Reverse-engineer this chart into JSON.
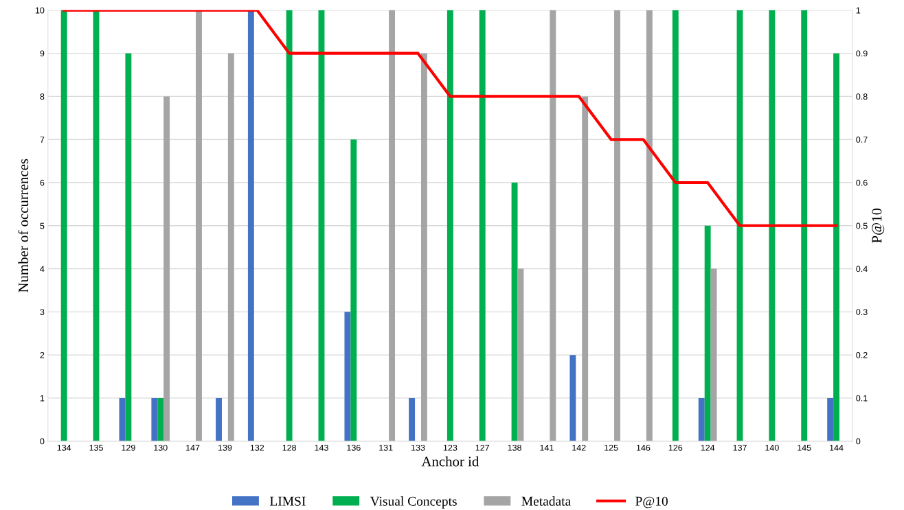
{
  "chart_data": {
    "type": "bar",
    "xlabel": "Anchor id",
    "ylabel": "Number of occurrences",
    "y2label": "P@10",
    "categories": [
      "134",
      "135",
      "129",
      "130",
      "147",
      "139",
      "132",
      "128",
      "143",
      "136",
      "131",
      "133",
      "123",
      "127",
      "138",
      "141",
      "142",
      "125",
      "146",
      "126",
      "124",
      "137",
      "140",
      "145",
      "144"
    ],
    "series": [
      {
        "name": "LIMSI",
        "color": "#4472c4",
        "values": [
          0,
          0,
          1,
          1,
          0,
          1,
          10,
          0,
          0,
          3,
          0,
          1,
          0,
          0,
          0,
          0,
          2,
          0,
          0,
          0,
          1,
          0,
          0,
          0,
          1
        ]
      },
      {
        "name": "Visual Concepts",
        "color": "#00b050",
        "values": [
          10,
          10,
          9,
          1,
          0,
          0,
          0,
          10,
          10,
          7,
          0,
          0,
          10,
          10,
          6,
          0,
          0,
          0,
          0,
          10,
          5,
          10,
          10,
          10,
          9
        ]
      },
      {
        "name": "Metadata",
        "color": "#a5a5a5",
        "values": [
          0,
          0,
          0,
          8,
          10,
          9,
          0,
          0,
          0,
          0,
          10,
          9,
          0,
          0,
          4,
          10,
          8,
          10,
          10,
          0,
          4,
          0,
          0,
          0,
          0
        ]
      },
      {
        "name": "P@10",
        "type": "line",
        "axis": "y2",
        "color": "#ff0000",
        "values": [
          1,
          1,
          1,
          1,
          1,
          1,
          1,
          0.9,
          0.9,
          0.9,
          0.9,
          0.9,
          0.8,
          0.8,
          0.8,
          0.8,
          0.8,
          0.7,
          0.7,
          0.6,
          0.6,
          0.5,
          0.5,
          0.5,
          0.5
        ]
      }
    ],
    "ylim": [
      0,
      10
    ],
    "yticks": [
      0,
      1,
      2,
      3,
      4,
      5,
      6,
      7,
      8,
      9,
      10
    ],
    "y2lim": [
      0,
      1
    ],
    "y2ticks": [
      0,
      0.1,
      0.2,
      0.3,
      0.4,
      0.5,
      0.6,
      0.7,
      0.8,
      0.9,
      1
    ],
    "grid": "y",
    "legend": "bottom"
  }
}
